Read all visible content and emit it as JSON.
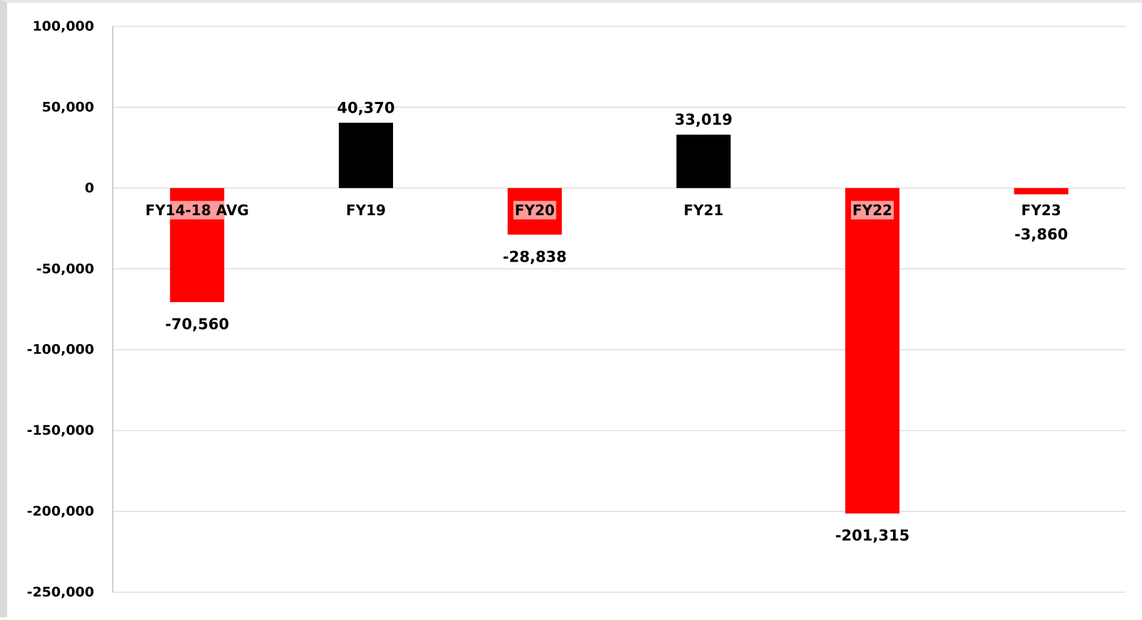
{
  "chart_data": {
    "type": "bar",
    "categories": [
      "FY14-18 AVG",
      "FY19",
      "FY20",
      "FY21",
      "FY22",
      "FY23"
    ],
    "values": [
      -70560,
      40370,
      -28838,
      33019,
      -201315,
      -3860
    ],
    "value_labels": [
      "-70,560",
      "40,370",
      "-28,838",
      "33,019",
      "-201,315",
      "-3,860"
    ],
    "ylim": [
      -250000,
      100000
    ],
    "yticks": [
      100000,
      50000,
      0,
      -50000,
      -100000,
      -150000,
      -200000,
      -250000
    ],
    "ytick_labels": [
      "100,000",
      "50,000",
      "0",
      "-50,000",
      "-100,000",
      "-150,000",
      "-200,000",
      "-250,000"
    ],
    "highlighted_categories": [
      "FY20",
      "FY22"
    ],
    "grid": true,
    "legend": "none",
    "title": "",
    "xlabel": "",
    "ylabel": "",
    "colors": {
      "positive": "#000000",
      "negative": "#ff0000",
      "label_highlight": "#ff9a9a",
      "grid": "#d9d9d9",
      "axis": "#bfbfbf"
    }
  }
}
